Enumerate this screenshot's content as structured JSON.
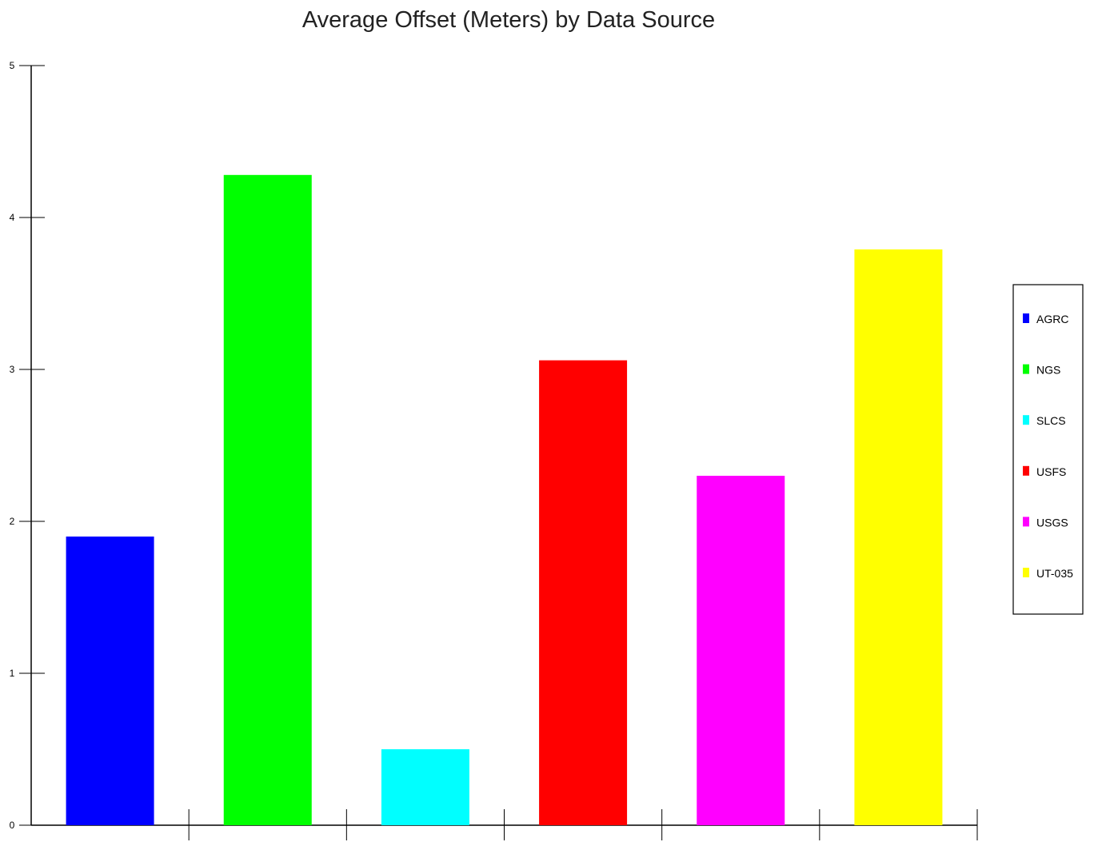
{
  "chart_data": {
    "type": "bar",
    "title": "Average Offset (Meters) by Data Source",
    "xlabel": "",
    "ylabel": "",
    "ylim": [
      0,
      5
    ],
    "yticks": [
      "0",
      "1",
      "2",
      "3",
      "4",
      "5"
    ],
    "grid": false,
    "legend_position": "right",
    "series": [
      {
        "name": "AGRC",
        "value": 1.9,
        "color": "#0000ff"
      },
      {
        "name": "NGS",
        "value": 4.28,
        "color": "#00ff00"
      },
      {
        "name": "SLCS",
        "value": 0.5,
        "color": "#00ffff"
      },
      {
        "name": "USFS",
        "value": 3.06,
        "color": "#ff0000"
      },
      {
        "name": "USGS",
        "value": 2.3,
        "color": "#ff00ff"
      },
      {
        "name": "UT-035",
        "value": 3.79,
        "color": "#ffff00"
      }
    ]
  }
}
